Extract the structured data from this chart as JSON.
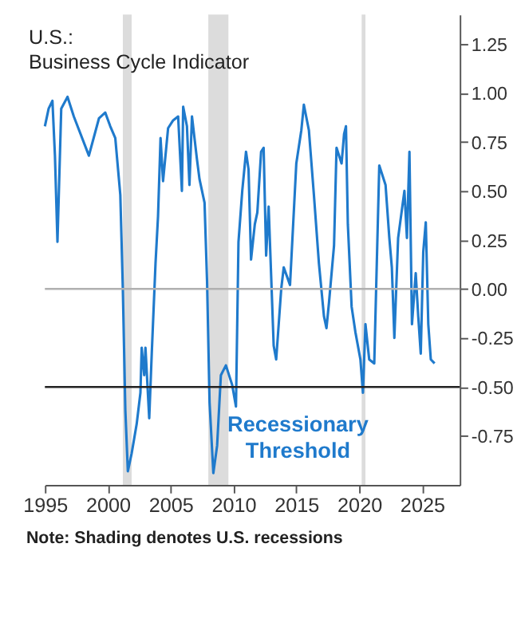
{
  "chart_data": {
    "type": "line",
    "title": [
      "U.S.:",
      "Business Cycle Indicator"
    ],
    "series": [
      {
        "color": "#1f7acc",
        "x": [
          1995.0,
          1995.3,
          1995.6,
          1995.8,
          1996.0,
          1996.3,
          1996.8,
          1997.3,
          1998.5,
          1999.3,
          1999.8,
          2000.2,
          2000.6,
          2001.0,
          2001.2,
          2001.4,
          2001.6,
          2001.9,
          2002.3,
          2002.6,
          2002.7,
          2002.9,
          2003.0,
          2003.3,
          2003.5,
          2003.8,
          2004.0,
          2004.2,
          2004.4,
          2004.8,
          2005.2,
          2005.6,
          2005.9,
          2006.0,
          2006.3,
          2006.5,
          2006.7,
          2007.1,
          2007.3,
          2007.7,
          2007.9,
          2008.1,
          2008.4,
          2008.7,
          2009.0,
          2009.4,
          2009.9,
          2010.2,
          2010.4,
          2010.7,
          2011.0,
          2011.2,
          2011.4,
          2011.7,
          2011.9,
          2012.2,
          2012.4,
          2012.6,
          2012.8,
          2013.2,
          2013.4,
          2013.8,
          2014.0,
          2014.5,
          2015.0,
          2015.4,
          2015.6,
          2016.0,
          2016.4,
          2016.8,
          2017.2,
          2017.4,
          2017.6,
          2018.0,
          2018.2,
          2018.6,
          2018.8,
          2018.95,
          2019.1,
          2019.4,
          2019.7,
          2020.1,
          2020.3,
          2020.5,
          2020.8,
          2021.2,
          2021.6,
          2022.1,
          2022.4,
          2022.6,
          2022.8,
          2023.1,
          2023.6,
          2023.8,
          2024.0,
          2024.2,
          2024.5,
          2024.7,
          2024.9,
          2025.1,
          2025.3,
          2025.5,
          2025.7,
          2026.0
        ],
        "values": [
          0.83,
          0.92,
          0.96,
          0.68,
          0.24,
          0.92,
          0.98,
          0.88,
          0.68,
          0.87,
          0.9,
          0.83,
          0.77,
          0.48,
          0.0,
          -0.62,
          -0.93,
          -0.84,
          -0.69,
          -0.53,
          -0.3,
          -0.44,
          -0.3,
          -0.66,
          -0.33,
          0.13,
          0.37,
          0.77,
          0.55,
          0.82,
          0.86,
          0.88,
          0.5,
          0.93,
          0.83,
          0.53,
          0.88,
          0.66,
          0.56,
          0.44,
          0.04,
          -0.58,
          -0.94,
          -0.8,
          -0.44,
          -0.39,
          -0.49,
          -0.6,
          0.24,
          0.5,
          0.7,
          0.61,
          0.15,
          0.33,
          0.39,
          0.7,
          0.72,
          0.17,
          0.42,
          -0.29,
          -0.36,
          0.0,
          0.11,
          0.02,
          0.64,
          0.81,
          0.94,
          0.81,
          0.48,
          0.13,
          -0.14,
          -0.2,
          -0.07,
          0.22,
          0.72,
          0.64,
          0.79,
          0.83,
          0.33,
          -0.09,
          -0.22,
          -0.36,
          -0.53,
          -0.18,
          -0.36,
          -0.38,
          0.63,
          0.53,
          0.26,
          0.11,
          -0.25,
          0.26,
          0.5,
          0.26,
          0.7,
          -0.18,
          0.08,
          -0.14,
          -0.33,
          0.19,
          0.34,
          -0.18,
          -0.36,
          -0.38
        ]
      }
    ],
    "xlim": [
      1995,
      2028
    ],
    "xticks": [
      1995,
      2000,
      2005,
      2010,
      2015,
      2020,
      2025
    ],
    "ylim": [
      -1.0,
      1.4
    ],
    "yticks": [
      {
        "value": -0.75,
        "label": "-0.75"
      },
      {
        "value": -0.5,
        "label": "-0.50"
      },
      {
        "value": -0.25,
        "label": "-0.25"
      },
      {
        "value": 0,
        "label": "0.00"
      },
      {
        "value": 0.25,
        "label": "0.25"
      },
      {
        "value": 0.5,
        "label": "0.50"
      },
      {
        "value": 0.75,
        "label": "0.75"
      },
      {
        "value": 1.0,
        "label": "1.00"
      },
      {
        "value": 1.25,
        "label": "1.25"
      }
    ],
    "ref_lines": [
      {
        "axis": "y",
        "value": 0,
        "color": "#b0b0b0"
      },
      {
        "axis": "y",
        "value": -0.5,
        "color": "#222222",
        "label": "Recessionary Threshold"
      }
    ],
    "bands": [
      {
        "axis": "x",
        "from": 2001.2,
        "to": 2001.9,
        "color": "#dcdcdc"
      },
      {
        "axis": "x",
        "from": 2008.0,
        "to": 2009.6,
        "color": "#dcdcdc"
      },
      {
        "axis": "x",
        "from": 2020.2,
        "to": 2020.5,
        "color": "#dcdcdc"
      }
    ],
    "annotations": [
      "Note: Shading denotes U.S. recessions"
    ],
    "grid": false
  }
}
